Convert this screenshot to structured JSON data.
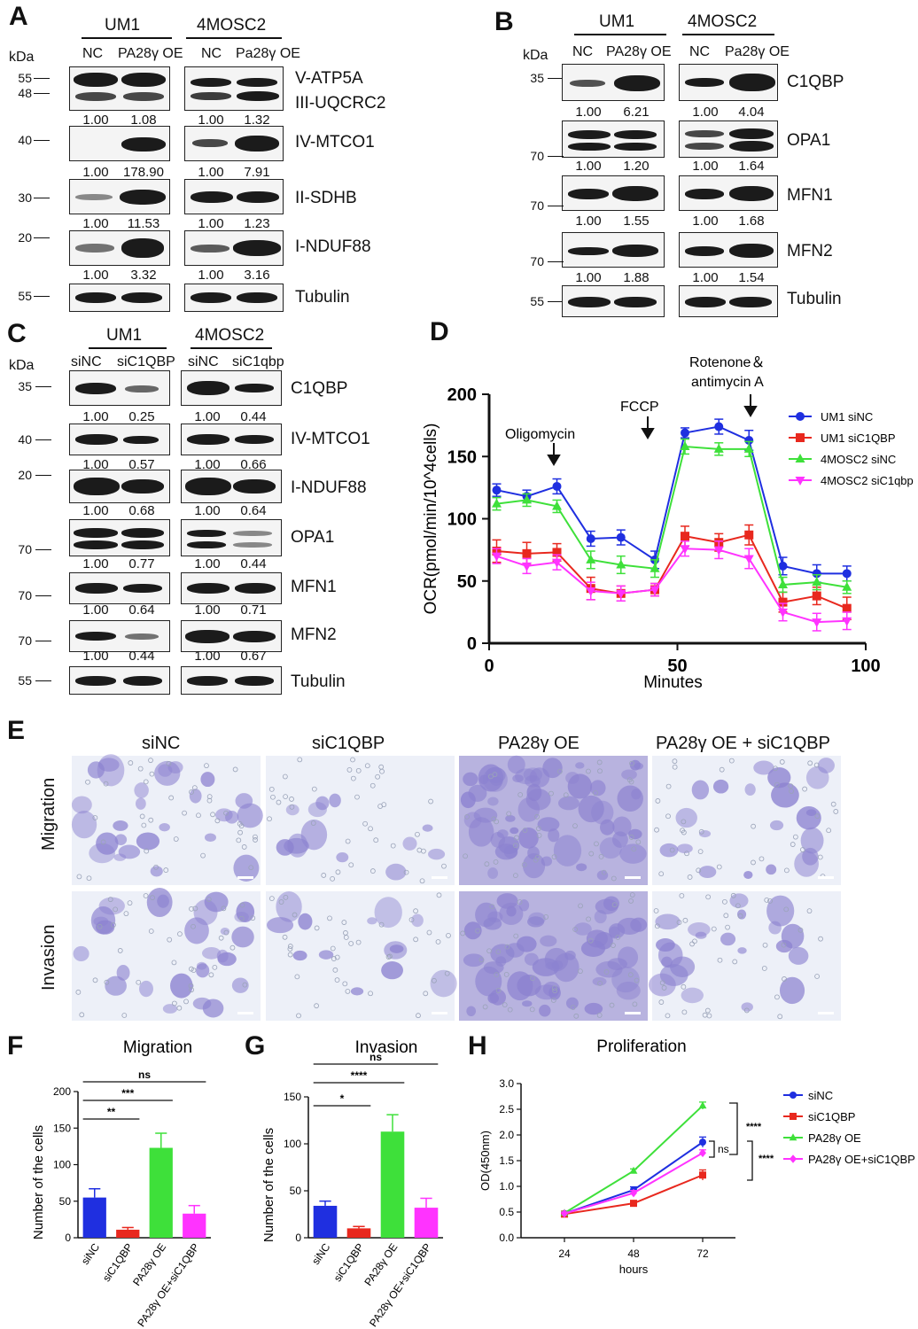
{
  "panel_letters": {
    "a": "A",
    "b": "B",
    "c": "C",
    "d": "D",
    "e": "E",
    "f": "F",
    "g": "G",
    "h": "H"
  },
  "panelA": {
    "groups": [
      "UM1",
      "4MOSC2"
    ],
    "lanes": [
      "NC",
      "PA28γ OE",
      "NC",
      "Pa28γ OE"
    ],
    "kda_header": "kDa",
    "kda_marks": [
      "55",
      "48",
      "40",
      "30",
      "20",
      "55"
    ],
    "proteins": [
      "V-ATP5A",
      "III-UQCRC2",
      "IV-MTCO1",
      "II-SDHB",
      "I-NDUF88",
      "Tubulin"
    ],
    "values": [
      [
        "1.00",
        "1.08",
        "1.00",
        "1.32"
      ],
      [
        "1.00",
        "178.90",
        "1.00",
        "7.91"
      ],
      [
        "1.00",
        "11.53",
        "1.00",
        "1.23"
      ],
      [
        "1.00",
        "3.32",
        "1.00",
        "3.16"
      ]
    ]
  },
  "panelB": {
    "groups": [
      "UM1",
      "4MOSC2"
    ],
    "lanes": [
      "NC",
      "PA28γ OE",
      "NC",
      "Pa28γ OE"
    ],
    "kda_header": "kDa",
    "kda_marks": [
      "35",
      "70",
      "70",
      "70",
      "55"
    ],
    "proteins": [
      "C1QBP",
      "OPA1",
      "MFN1",
      "MFN2",
      "Tubulin"
    ],
    "values": [
      [
        "1.00",
        "6.21",
        "1.00",
        "4.04"
      ],
      [
        "1.00",
        "1.20",
        "1.00",
        "1.64"
      ],
      [
        "1.00",
        "1.55",
        "1.00",
        "1.68"
      ],
      [
        "1.00",
        "1.88",
        "1.00",
        "1.54"
      ]
    ]
  },
  "panelC": {
    "groups": [
      "UM1",
      "4MOSC2"
    ],
    "lanes": [
      "siNC",
      "siC1QBP",
      "siNC",
      "siC1qbp"
    ],
    "kda_header": "kDa",
    "kda_marks": [
      "35",
      "40",
      "20",
      "70",
      "70",
      "70",
      "55"
    ],
    "proteins": [
      "C1QBP",
      "IV-MTCO1",
      "I-NDUF88",
      "OPA1",
      "MFN1",
      "MFN2",
      "Tubulin"
    ],
    "values": [
      [
        "1.00",
        "0.25",
        "1.00",
        "0.44"
      ],
      [
        "1.00",
        "0.57",
        "1.00",
        "0.66"
      ],
      [
        "1.00",
        "0.68",
        "1.00",
        "0.64"
      ],
      [
        "1.00",
        "0.77",
        "1.00",
        "0.44"
      ],
      [
        "1.00",
        "0.64",
        "1.00",
        "0.71"
      ],
      [
        "1.00",
        "0.44",
        "1.00",
        "0.67"
      ]
    ]
  },
  "panelE": {
    "columns": [
      "siNC",
      "siC1QBP",
      "PA28γ OE",
      "PA28γ OE + siC1QBP"
    ],
    "rows": [
      "Migration",
      "Invasion"
    ]
  },
  "annotations": {
    "oligomycin": "Oligomycin",
    "fccp": "FCCP",
    "rotenone": "Rotenone＆\nantimycin A",
    "sig_F": [
      "**",
      "***",
      "ns"
    ],
    "sig_G": [
      "*",
      "****",
      "ns"
    ],
    "sig_H": [
      "****",
      "ns",
      "****"
    ]
  },
  "colors": {
    "blue": "#1f2fe0",
    "red": "#e8281e",
    "green": "#3ee03a",
    "magenta": "#ff33ff"
  },
  "chart_data": [
    {
      "id": "D",
      "type": "line",
      "xlabel": "Minutes",
      "ylabel": "OCR(pmol/min/10^4cells)",
      "xlim": [
        0,
        100
      ],
      "ylim": [
        0,
        200
      ],
      "xticks": [
        0,
        50,
        100
      ],
      "yticks": [
        0,
        50,
        100,
        150,
        200
      ],
      "legend": "right",
      "x": [
        2,
        10,
        18,
        27,
        35,
        44,
        52,
        61,
        69,
        78,
        87,
        95
      ],
      "series": [
        {
          "name": "UM1 siNC",
          "color": "#1f2fe0",
          "marker": "circle",
          "values": [
            123,
            118,
            126,
            84,
            85,
            67,
            169,
            174,
            163,
            62,
            56,
            56
          ],
          "err": [
            5,
            5,
            6,
            6,
            6,
            7,
            4,
            6,
            8,
            7,
            7,
            6
          ]
        },
        {
          "name": "UM1 siC1QBP",
          "color": "#e8281e",
          "marker": "square",
          "values": [
            74,
            72,
            73,
            44,
            40,
            43,
            86,
            81,
            87,
            33,
            38,
            28
          ],
          "err": [
            9,
            9,
            7,
            9,
            6,
            5,
            8,
            7,
            8,
            8,
            7,
            9
          ]
        },
        {
          "name": "4MOSC2 siNC",
          "color": "#3ee03a",
          "marker": "triangle-up",
          "values": [
            112,
            115,
            110,
            67,
            63,
            60,
            158,
            156,
            156,
            47,
            49,
            45
          ],
          "err": [
            5,
            5,
            5,
            7,
            7,
            7,
            6,
            5,
            6,
            6,
            6,
            5
          ]
        },
        {
          "name": "4MOSC2 siC1qbp",
          "color": "#ff33ff",
          "marker": "triangle-down",
          "values": [
            70,
            62,
            65,
            42,
            40,
            43,
            76,
            75,
            68,
            25,
            17,
            18
          ],
          "err": [
            6,
            6,
            6,
            7,
            6,
            5,
            6,
            7,
            8,
            7,
            7,
            7
          ]
        }
      ]
    },
    {
      "id": "F",
      "type": "bar",
      "title": "Migration",
      "ylabel": "Number of the cells",
      "ylim": [
        0,
        200
      ],
      "yticks": [
        0,
        50,
        100,
        150,
        200
      ],
      "categories": [
        "siNC",
        "siC1QBP",
        "PA28γ OE",
        "PA28γ OE+siC1QBP"
      ],
      "values": [
        55,
        11,
        123,
        33
      ],
      "err": [
        12,
        3,
        20,
        11
      ],
      "colors": [
        "#1f2fe0",
        "#e8281e",
        "#3ee03a",
        "#ff33ff"
      ]
    },
    {
      "id": "G",
      "type": "bar",
      "title": "Invasion",
      "ylabel": "Number of the cells",
      "ylim": [
        0,
        150
      ],
      "yticks": [
        0,
        50,
        100,
        150
      ],
      "categories": [
        "siNC",
        "siC1QBP",
        "PA28γ OE",
        "PA28γ OE+siC1QBP"
      ],
      "values": [
        34,
        10,
        113,
        32
      ],
      "err": [
        5,
        2,
        18,
        10
      ],
      "colors": [
        "#1f2fe0",
        "#e8281e",
        "#3ee03a",
        "#ff33ff"
      ]
    },
    {
      "id": "H",
      "type": "line",
      "title": "Proliferation",
      "xlabel": "hours",
      "ylabel": "OD(450nm)",
      "ylim": [
        0,
        3.0
      ],
      "yticks": [
        "0.0",
        "0.5",
        "1.0",
        "1.5",
        "2.0",
        "2.5",
        "3.0"
      ],
      "categories": [
        "24",
        "48",
        "72"
      ],
      "legend": "right",
      "series": [
        {
          "name": "siNC",
          "color": "#1f2fe0",
          "marker": "circle",
          "values": [
            0.47,
            0.93,
            1.86
          ],
          "err": [
            0.03,
            0.06,
            0.1
          ]
        },
        {
          "name": "siC1QBP",
          "color": "#e8281e",
          "marker": "square",
          "values": [
            0.46,
            0.67,
            1.22
          ],
          "err": [
            0.02,
            0.04,
            0.1
          ]
        },
        {
          "name": "PA28γ OE",
          "color": "#3ee03a",
          "marker": "triangle-up",
          "values": [
            0.48,
            1.3,
            2.57
          ],
          "err": [
            0.03,
            0.04,
            0.07
          ]
        },
        {
          "name": "PA28γ OE+siC1QBP",
          "color": "#ff33ff",
          "marker": "diamond",
          "values": [
            0.47,
            0.87,
            1.65
          ],
          "err": [
            0.03,
            0.05,
            0.06
          ]
        }
      ]
    }
  ]
}
